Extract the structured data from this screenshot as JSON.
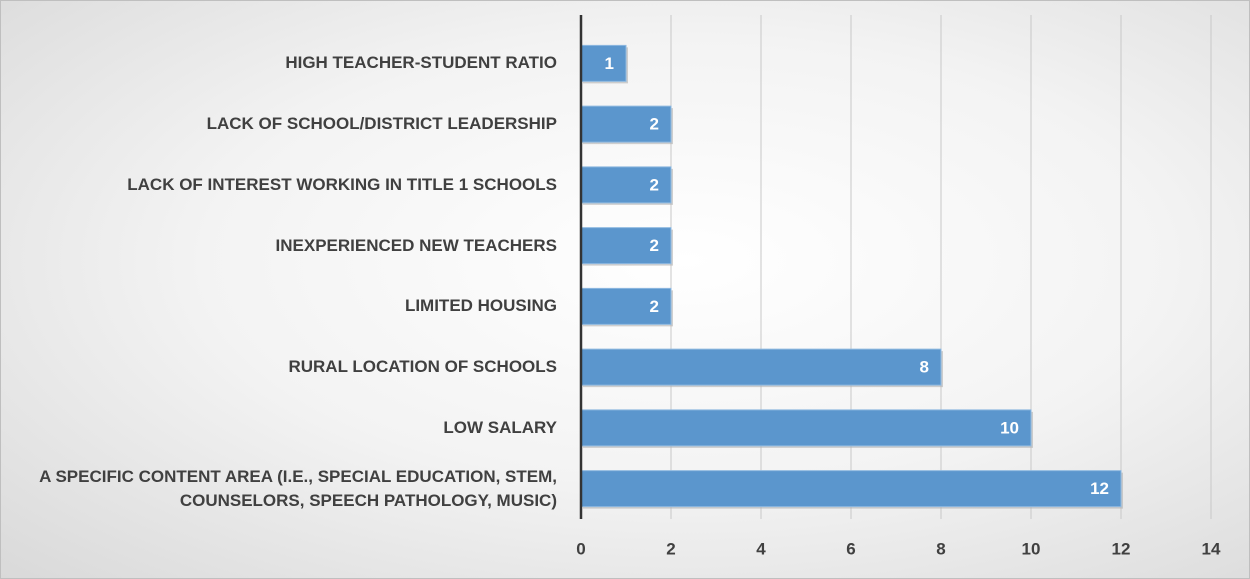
{
  "chart_data": {
    "type": "barh",
    "categories": [
      "HIGH TEACHER-STUDENT RATIO",
      "LACK OF SCHOOL/DISTRICT LEADERSHIP",
      "LACK OF INTEREST WORKING IN TITLE 1 SCHOOLS",
      "INEXPERIENCED NEW TEACHERS",
      "LIMITED HOUSING",
      "RURAL LOCATION OF SCHOOLS",
      "LOW SALARY",
      "A SPECIFIC CONTENT AREA (I.E., SPECIAL EDUCATION, STEM, COUNSELORS, SPEECH PATHOLOGY, MUSIC)"
    ],
    "values": [
      1,
      2,
      2,
      2,
      2,
      8,
      10,
      12
    ],
    "color": "#5b96cd",
    "xlim": [
      0,
      14
    ],
    "xticks": [
      0,
      2,
      4,
      6,
      8,
      10,
      12,
      14
    ],
    "grid": true
  }
}
